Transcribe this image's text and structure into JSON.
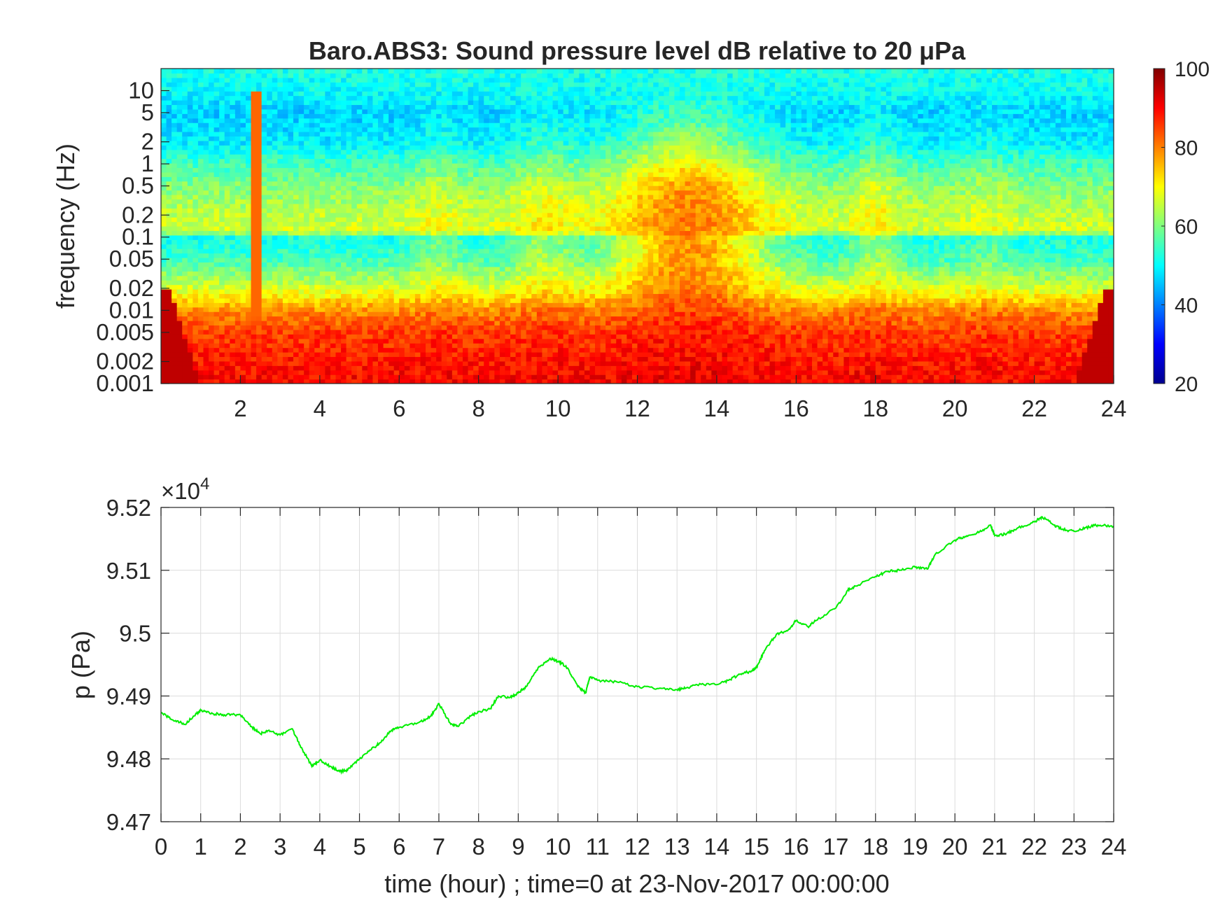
{
  "chart_data": [
    {
      "type": "heatmap",
      "title": "Baro.ABS3: Sound pressure level dB relative to 20 μPa",
      "xlabel": "",
      "ylabel": "frequency (Hz)",
      "xlim": [
        0,
        24
      ],
      "ylim": [
        0.001,
        20
      ],
      "yscale": "log",
      "x_ticks": [
        2,
        4,
        6,
        8,
        10,
        12,
        14,
        16,
        18,
        20,
        22,
        24
      ],
      "x_tick_labels": [
        "2",
        "4",
        "6",
        "8",
        "10",
        "12",
        "14",
        "16",
        "18",
        "20",
        "22",
        "24"
      ],
      "y_ticks": [
        10,
        5,
        2,
        1,
        0.5,
        0.2,
        0.1,
        0.05,
        0.02,
        0.01,
        0.005,
        0.002,
        0.001
      ],
      "y_tick_labels": [
        "10",
        "5",
        "2",
        "1",
        "0.5",
        "0.2",
        "0.1",
        "0.05",
        "0.02",
        "0.01",
        "0.005",
        "0.002",
        "0.001"
      ],
      "colormap": "jet",
      "clim": [
        20,
        100
      ],
      "colorbar_ticks": [
        20,
        40,
        60,
        80,
        100
      ],
      "colorbar_tick_labels": [
        "20",
        "40",
        "60",
        "80",
        "100"
      ],
      "approx_levels_db": {
        "freq_hz": [
          20,
          10,
          5,
          2,
          1,
          0.5,
          0.2,
          0.12,
          0.1,
          0.05,
          0.02,
          0.01,
          0.005,
          0.002,
          0.001
        ],
        "quiet_hours_db": [
          52,
          50,
          45,
          47,
          53,
          58,
          63,
          65,
          48,
          52,
          65,
          78,
          85,
          88,
          90
        ],
        "active_hours_12_15_db": [
          52,
          52,
          55,
          62,
          70,
          78,
          80,
          80,
          78,
          78,
          80,
          85,
          88,
          90,
          92
        ]
      }
    },
    {
      "type": "line",
      "xlabel": "time (hour) ; time=0 at 23-Nov-2017 00:00:00",
      "ylabel": "p (Pa)",
      "y_exponent_label": "×10",
      "y_exponent_power": "4",
      "xlim": [
        0,
        24
      ],
      "ylim": [
        94700,
        95200
      ],
      "grid": true,
      "x_ticks": [
        0,
        1,
        2,
        3,
        4,
        5,
        6,
        7,
        8,
        9,
        10,
        11,
        12,
        13,
        14,
        15,
        16,
        17,
        18,
        19,
        20,
        21,
        22,
        23,
        24
      ],
      "x_tick_labels": [
        "0",
        "1",
        "2",
        "3",
        "4",
        "5",
        "6",
        "7",
        "8",
        "9",
        "10",
        "11",
        "12",
        "13",
        "14",
        "15",
        "16",
        "17",
        "18",
        "19",
        "20",
        "21",
        "22",
        "23",
        "24"
      ],
      "y_ticks": [
        94700,
        94800,
        94900,
        95000,
        95100,
        95200
      ],
      "y_tick_labels": [
        "9.47",
        "9.48",
        "9.49",
        "9.5",
        "9.51",
        "9.52"
      ],
      "line_color": "#00ee00",
      "x": [
        0,
        0.3,
        0.6,
        0.9,
        1.0,
        1.3,
        1.6,
        2.0,
        2.3,
        2.5,
        2.7,
        3.0,
        3.3,
        3.5,
        3.8,
        4.0,
        4.3,
        4.5,
        4.7,
        5.0,
        5.3,
        5.5,
        5.8,
        6.0,
        6.5,
        6.8,
        7.0,
        7.3,
        7.5,
        7.8,
        8.0,
        8.3,
        8.5,
        8.8,
        9.0,
        9.2,
        9.5,
        9.8,
        10.0,
        10.2,
        10.5,
        10.7,
        10.8,
        11.0,
        11.5,
        12.0,
        12.5,
        13.0,
        13.2,
        13.5,
        14.0,
        14.3,
        14.6,
        14.9,
        15.0,
        15.2,
        15.5,
        15.8,
        16.0,
        16.3,
        16.5,
        17.0,
        17.3,
        17.5,
        18.0,
        18.3,
        18.6,
        19.0,
        19.3,
        19.5,
        20.0,
        20.3,
        20.6,
        20.9,
        21.0,
        21.3,
        21.6,
        22.0,
        22.2,
        22.5,
        22.7,
        23.0,
        23.3,
        23.6,
        24.0
      ],
      "y": [
        94873,
        94862,
        94855,
        94872,
        94877,
        94872,
        94870,
        94870,
        94850,
        94840,
        94845,
        94838,
        94848,
        94822,
        94788,
        94798,
        94787,
        94780,
        94782,
        94800,
        94815,
        94825,
        94845,
        94850,
        94858,
        94868,
        94888,
        94855,
        94852,
        94868,
        94875,
        94880,
        94900,
        94898,
        94905,
        94915,
        94945,
        94960,
        94955,
        94948,
        94915,
        94905,
        94930,
        94925,
        94922,
        94915,
        94912,
        94910,
        94912,
        94918,
        94918,
        94925,
        94935,
        94940,
        94945,
        94972,
        94998,
        95005,
        95020,
        95010,
        95020,
        95040,
        95068,
        95075,
        95090,
        95098,
        95100,
        95105,
        95102,
        95125,
        95148,
        95155,
        95160,
        95172,
        95155,
        95158,
        95168,
        95177,
        95185,
        95172,
        95165,
        95162,
        95168,
        95172,
        95170
      ]
    }
  ]
}
